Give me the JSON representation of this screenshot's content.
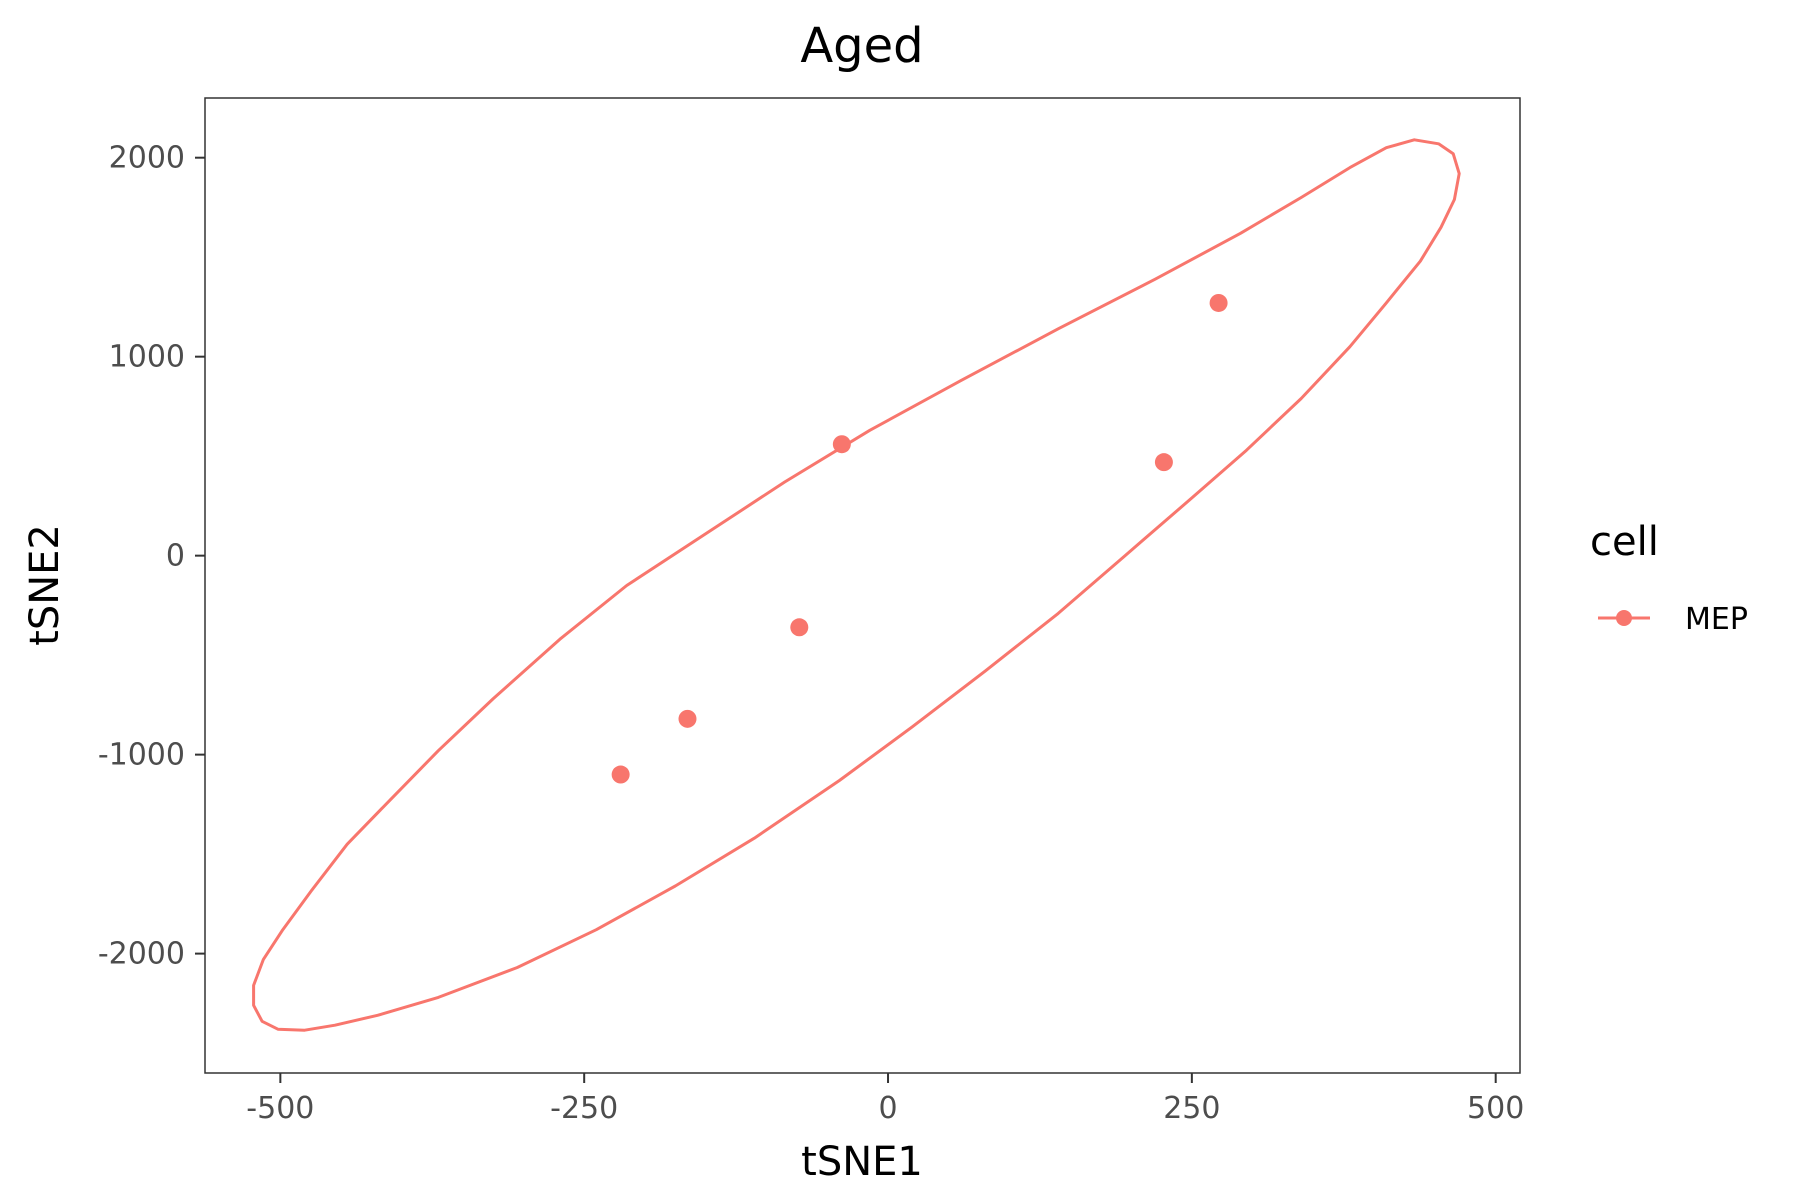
{
  "chart_data": {
    "type": "scatter",
    "title": "Aged",
    "xlabel": "tSNE1",
    "ylabel": "tSNE2",
    "xlim": [
      -562,
      520
    ],
    "ylim": [
      -2600,
      2300
    ],
    "x_ticks": [
      -500,
      -250,
      0,
      250,
      500
    ],
    "y_ticks": [
      2000,
      1000,
      0,
      -1000,
      -2000
    ],
    "x_tick_labels": [
      "-500",
      "-250",
      "0",
      "250",
      "500"
    ],
    "y_tick_labels": [
      "2000",
      "1000",
      "0",
      "-1000",
      "-2000"
    ],
    "grid": false,
    "legend": {
      "title": "cell",
      "position": "right",
      "entries": [
        {
          "label": "MEP",
          "color": "#F8766D"
        }
      ]
    },
    "series": [
      {
        "name": "MEP",
        "color": "#F8766D",
        "points": [
          {
            "x": -220,
            "y": -1100
          },
          {
            "x": -165,
            "y": -820
          },
          {
            "x": -73,
            "y": -360
          },
          {
            "x": -38,
            "y": 560
          },
          {
            "x": 227,
            "y": 470
          },
          {
            "x": 272,
            "y": 1270
          }
        ],
        "ellipse": {
          "points": [
            {
              "x": 433,
              "y": 2090
            },
            {
              "x": 453,
              "y": 2070
            },
            {
              "x": 465,
              "y": 2020
            },
            {
              "x": 470,
              "y": 1920
            },
            {
              "x": 466,
              "y": 1790
            },
            {
              "x": 455,
              "y": 1650
            },
            {
              "x": 438,
              "y": 1480
            },
            {
              "x": 410,
              "y": 1270
            },
            {
              "x": 380,
              "y": 1050
            },
            {
              "x": 340,
              "y": 790
            },
            {
              "x": 295,
              "y": 530
            },
            {
              "x": 250,
              "y": 290
            },
            {
              "x": 195,
              "y": 0
            },
            {
              "x": 140,
              "y": -290
            },
            {
              "x": 80,
              "y": -580
            },
            {
              "x": 20,
              "y": -860
            },
            {
              "x": -40,
              "y": -1130
            },
            {
              "x": -110,
              "y": -1420
            },
            {
              "x": -175,
              "y": -1660
            },
            {
              "x": -240,
              "y": -1880
            },
            {
              "x": -305,
              "y": -2070
            },
            {
              "x": -370,
              "y": -2220
            },
            {
              "x": -420,
              "y": -2310
            },
            {
              "x": -455,
              "y": -2360
            },
            {
              "x": -480,
              "y": -2385
            },
            {
              "x": -502,
              "y": -2380
            },
            {
              "x": -515,
              "y": -2340
            },
            {
              "x": -522,
              "y": -2260
            },
            {
              "x": -522,
              "y": -2160
            },
            {
              "x": -514,
              "y": -2030
            },
            {
              "x": -498,
              "y": -1880
            },
            {
              "x": -474,
              "y": -1680
            },
            {
              "x": -445,
              "y": -1450
            },
            {
              "x": -410,
              "y": -1230
            },
            {
              "x": -370,
              "y": -980
            },
            {
              "x": -325,
              "y": -720
            },
            {
              "x": -270,
              "y": -420
            },
            {
              "x": -215,
              "y": -150
            },
            {
              "x": -150,
              "y": 110
            },
            {
              "x": -85,
              "y": 370
            },
            {
              "x": -15,
              "y": 630
            },
            {
              "x": 60,
              "y": 880
            },
            {
              "x": 140,
              "y": 1140
            },
            {
              "x": 220,
              "y": 1390
            },
            {
              "x": 290,
              "y": 1620
            },
            {
              "x": 340,
              "y": 1800
            },
            {
              "x": 380,
              "y": 1950
            },
            {
              "x": 410,
              "y": 2050
            }
          ]
        }
      }
    ]
  }
}
